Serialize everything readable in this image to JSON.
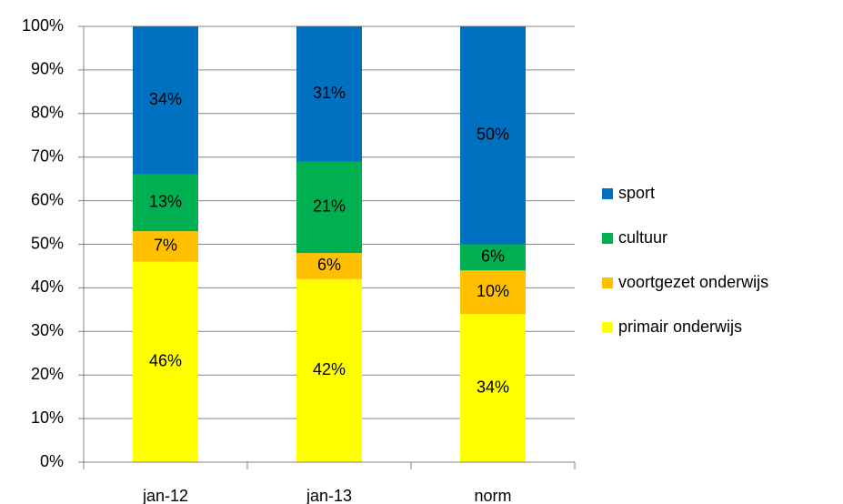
{
  "chart_data": {
    "type": "stacked_bar",
    "categories": [
      "jan-12",
      "jan-13",
      "norm"
    ],
    "series": [
      {
        "name": "primair onderwijs",
        "color": "#ffff00",
        "values": [
          46,
          42,
          34
        ],
        "value_labels": [
          "46%",
          "42%",
          "34%"
        ]
      },
      {
        "name": "voortgezet onderwijs",
        "color": "#ffc000",
        "values": [
          7,
          6,
          10
        ],
        "value_labels": [
          "7%",
          "6%",
          "10%"
        ]
      },
      {
        "name": "cultuur",
        "color": "#00b050",
        "values": [
          13,
          21,
          6
        ],
        "value_labels": [
          "13%",
          "21%",
          "6%"
        ]
      },
      {
        "name": "sport",
        "color": "#0070c0",
        "values": [
          34,
          31,
          50
        ],
        "value_labels": [
          "34%",
          "31%",
          "50%"
        ]
      }
    ],
    "ylim": [
      0,
      100
    ],
    "yticks": [
      {
        "value": 0,
        "label": "0%"
      },
      {
        "value": 10,
        "label": "10%"
      },
      {
        "value": 20,
        "label": "20%"
      },
      {
        "value": 30,
        "label": "30%"
      },
      {
        "value": 40,
        "label": "40%"
      },
      {
        "value": 50,
        "label": "50%"
      },
      {
        "value": 60,
        "label": "60%"
      },
      {
        "value": 70,
        "label": "70%"
      },
      {
        "value": 80,
        "label": "80%"
      },
      {
        "value": 90,
        "label": "90%"
      },
      {
        "value": 100,
        "label": "100%"
      }
    ],
    "grid": true,
    "legend": "right"
  }
}
